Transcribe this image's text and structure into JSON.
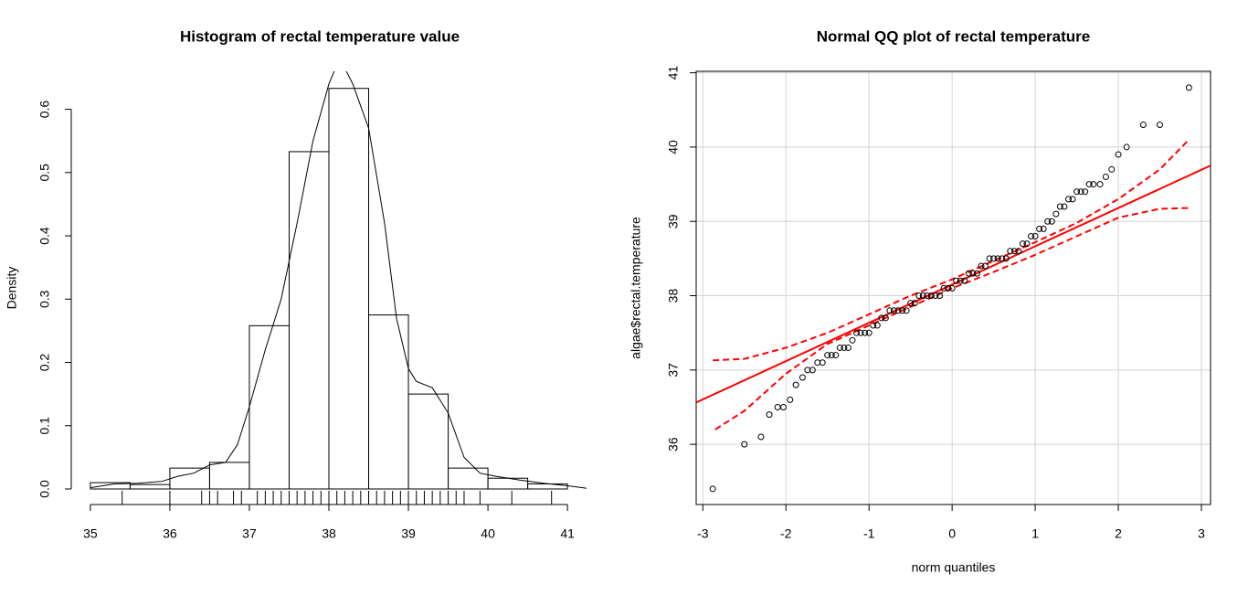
{
  "chart_data": [
    {
      "type": "histogram",
      "title": "Histogram of rectal temperature value",
      "ylabel": "Density",
      "bins": [
        35,
        35.5,
        36,
        36.5,
        37,
        37.5,
        38,
        38.5,
        39,
        39.5,
        40,
        40.5,
        41
      ],
      "values": [
        0.01,
        0.007,
        0.033,
        0.042,
        0.258,
        0.533,
        0.633,
        0.275,
        0.15,
        0.033,
        0.017,
        0.008
      ],
      "color": "#000000",
      "density": {
        "x": [
          35.0,
          35.3,
          35.6,
          35.9,
          36.1,
          36.3,
          36.5,
          36.7,
          36.85,
          37.0,
          37.2,
          37.4,
          37.6,
          37.8,
          38.0,
          38.1,
          38.2,
          38.3,
          38.5,
          38.7,
          38.85,
          39.0,
          39.1,
          39.3,
          39.5,
          39.7,
          39.9,
          40.1,
          40.4,
          40.7,
          41.0,
          41.25
        ],
        "y": [
          0.002,
          0.008,
          0.009,
          0.012,
          0.02,
          0.025,
          0.038,
          0.042,
          0.07,
          0.13,
          0.22,
          0.3,
          0.42,
          0.55,
          0.64,
          0.67,
          0.665,
          0.64,
          0.57,
          0.42,
          0.27,
          0.19,
          0.17,
          0.16,
          0.12,
          0.05,
          0.025,
          0.02,
          0.014,
          0.009,
          0.005,
          0.001
        ]
      },
      "rug": [
        35.4,
        36.0,
        36.4,
        36.5,
        36.6,
        36.8,
        36.9,
        37.1,
        37.2,
        37.3,
        37.4,
        37.5,
        37.6,
        37.7,
        37.8,
        37.9,
        38.0,
        38.1,
        38.2,
        38.3,
        38.4,
        38.5,
        38.6,
        38.7,
        38.8,
        38.9,
        39.0,
        39.1,
        39.2,
        39.3,
        39.4,
        39.5,
        39.6,
        39.7,
        39.9,
        40.3,
        40.8
      ],
      "xlim": [
        34.76,
        41.24
      ],
      "ylim": [
        0,
        0.66
      ],
      "xticks": [
        35,
        36,
        37,
        38,
        39,
        40,
        41
      ],
      "yticks": [
        {
          "value": 0,
          "label": "0.0"
        },
        0.1,
        0.2,
        0.3,
        0.4,
        0.5,
        0.6
      ]
    },
    {
      "type": "scatter",
      "title": "Normal QQ plot of rectal temperature",
      "xlabel": "norm quantiles",
      "ylabel": "algae$rectal.temperature",
      "x": [
        -2.88,
        -2.5,
        -2.3,
        -2.2,
        -2.1,
        -2.03,
        -1.95,
        -1.88,
        -1.8,
        -1.74,
        -1.68,
        -1.62,
        -1.56,
        -1.5,
        -1.45,
        -1.4,
        -1.35,
        -1.3,
        -1.25,
        -1.2,
        -1.15,
        -1.1,
        -1.05,
        -1.0,
        -0.95,
        -0.9,
        -0.85,
        -0.8,
        -0.75,
        -0.7,
        -0.65,
        -0.6,
        -0.55,
        -0.5,
        -0.45,
        -0.4,
        -0.35,
        -0.3,
        -0.25,
        -0.2,
        -0.15,
        -0.1,
        -0.05,
        0.0,
        0.05,
        0.1,
        0.15,
        0.2,
        0.25,
        0.3,
        0.35,
        0.4,
        0.45,
        0.5,
        0.55,
        0.6,
        0.65,
        0.7,
        0.75,
        0.8,
        0.85,
        0.9,
        0.95,
        1.0,
        1.05,
        1.1,
        1.15,
        1.2,
        1.25,
        1.3,
        1.35,
        1.4,
        1.45,
        1.5,
        1.55,
        1.6,
        1.65,
        1.7,
        1.78,
        1.85,
        1.92,
        2.0,
        2.1,
        2.3,
        2.5,
        2.85
      ],
      "values": [
        35.4,
        36.0,
        36.1,
        36.4,
        36.5,
        36.5,
        36.6,
        36.8,
        36.9,
        37.0,
        37.0,
        37.1,
        37.1,
        37.2,
        37.2,
        37.2,
        37.3,
        37.3,
        37.3,
        37.4,
        37.5,
        37.5,
        37.5,
        37.5,
        37.6,
        37.6,
        37.7,
        37.7,
        37.8,
        37.8,
        37.8,
        37.8,
        37.8,
        37.9,
        37.9,
        38.0,
        38.0,
        38.0,
        38.0,
        38.0,
        38.0,
        38.1,
        38.1,
        38.1,
        38.2,
        38.2,
        38.2,
        38.3,
        38.3,
        38.3,
        38.4,
        38.4,
        38.5,
        38.5,
        38.5,
        38.5,
        38.5,
        38.6,
        38.6,
        38.6,
        38.7,
        38.7,
        38.8,
        38.8,
        38.9,
        38.9,
        39.0,
        39.0,
        39.1,
        39.2,
        39.2,
        39.3,
        39.3,
        39.4,
        39.4,
        39.4,
        39.5,
        39.5,
        39.5,
        39.6,
        39.7,
        39.9,
        40.0,
        40.3,
        40.3,
        40.8
      ],
      "color": "#000000",
      "line_color": "#ff0000",
      "ref_line": {
        "intercept": 38.15,
        "slope": 0.515
      },
      "envelope": {
        "upper": {
          "x": [
            -2.88,
            -2.5,
            -2,
            -1.5,
            -1,
            -0.5,
            0,
            0.5,
            1,
            1.5,
            2,
            2.5,
            2.85
          ],
          "y": [
            37.13,
            37.15,
            37.3,
            37.5,
            37.75,
            38.0,
            38.22,
            38.47,
            38.72,
            38.98,
            39.3,
            39.7,
            40.1
          ]
        },
        "lower": {
          "x": [
            -2.85,
            -2.5,
            -2,
            -1.5,
            -1,
            -0.5,
            0,
            0.5,
            1,
            1.5,
            2,
            2.5,
            2.85
          ],
          "y": [
            36.2,
            36.45,
            36.95,
            37.35,
            37.6,
            37.85,
            38.1,
            38.32,
            38.55,
            38.8,
            39.05,
            39.17,
            39.18
          ]
        }
      },
      "xlim": [
        -3.08,
        3.11
      ],
      "ylim": [
        35.19,
        41.02
      ],
      "xticks": [
        -3,
        -2,
        -1,
        0,
        1,
        2,
        3
      ],
      "yticks": [
        36,
        37,
        38,
        39,
        40,
        41
      ],
      "grid": true
    }
  ]
}
